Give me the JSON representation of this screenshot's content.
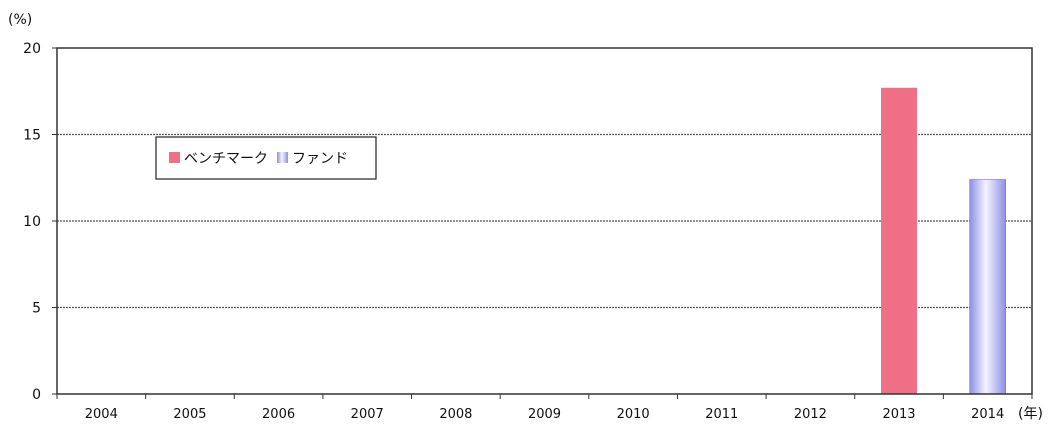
{
  "chart_data": {
    "type": "bar",
    "title": "",
    "ylabel": "(%)",
    "xlabel": "(年)",
    "categories": [
      "2004",
      "2005",
      "2006",
      "2007",
      "2008",
      "2009",
      "2010",
      "2011",
      "2012",
      "2013",
      "2014"
    ],
    "series": [
      {
        "name": "ベンチマーク",
        "color": "#ee6f86",
        "values": [
          null,
          null,
          null,
          null,
          null,
          null,
          null,
          null,
          null,
          17.7,
          null
        ]
      },
      {
        "name": "ファンド",
        "color": "#bcbcf0",
        "values": [
          null,
          null,
          null,
          null,
          null,
          null,
          null,
          null,
          null,
          null,
          12.4
        ]
      }
    ],
    "yticks": [
      0,
      5,
      10,
      15,
      20
    ],
    "ylim": [
      0,
      20
    ],
    "grid": true,
    "legend_position": "upper-left inside plot"
  }
}
